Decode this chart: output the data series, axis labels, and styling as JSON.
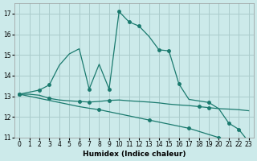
{
  "xlabel": "Humidex (Indice chaleur)",
  "bg_color": "#cceaea",
  "grid_color": "#aacccc",
  "line_color": "#1a7a6e",
  "xlim": [
    -0.5,
    23.5
  ],
  "ylim": [
    11,
    17.5
  ],
  "yticks": [
    11,
    12,
    13,
    14,
    15,
    16,
    17
  ],
  "xticks": [
    0,
    1,
    2,
    3,
    4,
    5,
    6,
    7,
    8,
    9,
    10,
    11,
    12,
    13,
    14,
    15,
    16,
    17,
    18,
    19,
    20,
    21,
    22,
    23
  ],
  "curve_upper_x": [
    0,
    2,
    3,
    4,
    5,
    6,
    7,
    8,
    9,
    10,
    11,
    12,
    13,
    14,
    15,
    16,
    17,
    19,
    20,
    21,
    22,
    23
  ],
  "curve_upper_y": [
    13.1,
    13.3,
    13.55,
    14.5,
    15.05,
    15.3,
    13.35,
    14.55,
    13.35,
    17.1,
    16.6,
    16.4,
    15.9,
    15.25,
    15.2,
    13.6,
    12.85,
    12.7,
    12.4,
    11.7,
    11.4,
    10.8
  ],
  "curve_upper_markers_x": [
    0,
    2,
    3,
    7,
    9,
    10,
    11,
    12,
    14,
    15,
    16,
    19,
    21,
    22,
    23
  ],
  "curve_upper_markers_y": [
    13.1,
    13.3,
    13.55,
    13.35,
    13.35,
    17.1,
    16.6,
    16.4,
    15.25,
    15.2,
    13.6,
    12.7,
    11.7,
    11.4,
    10.8
  ],
  "curve_mid_x": [
    0,
    1,
    2,
    3,
    4,
    5,
    6,
    7,
    8,
    9,
    10,
    11,
    12,
    13,
    14,
    15,
    16,
    17,
    18,
    19,
    20,
    21,
    22,
    23
  ],
  "curve_mid_y": [
    13.1,
    13.1,
    13.05,
    12.9,
    12.82,
    12.78,
    12.75,
    12.72,
    12.75,
    12.8,
    12.82,
    12.78,
    12.75,
    12.72,
    12.68,
    12.62,
    12.58,
    12.55,
    12.5,
    12.45,
    12.4,
    12.38,
    12.35,
    12.3
  ],
  "curve_mid_markers_x": [
    3,
    6,
    7,
    9,
    18,
    19
  ],
  "curve_mid_markers_y": [
    12.9,
    12.75,
    12.72,
    12.8,
    12.5,
    12.45
  ],
  "curve_low_x": [
    0,
    1,
    2,
    3,
    4,
    5,
    6,
    7,
    8,
    9,
    10,
    11,
    12,
    13,
    14,
    15,
    16,
    17,
    18,
    19,
    20,
    21,
    22,
    23
  ],
  "curve_low_y": [
    13.1,
    13.0,
    12.9,
    12.8,
    12.7,
    12.6,
    12.5,
    12.42,
    12.35,
    12.25,
    12.15,
    12.05,
    11.95,
    11.85,
    11.75,
    11.65,
    11.55,
    11.45,
    11.3,
    11.15,
    11.0,
    10.9,
    10.85,
    10.78
  ],
  "curve_low_markers_x": [
    0,
    8,
    13,
    17,
    20,
    22,
    23
  ],
  "curve_low_markers_y": [
    13.1,
    12.35,
    11.85,
    11.45,
    11.0,
    10.85,
    10.78
  ]
}
